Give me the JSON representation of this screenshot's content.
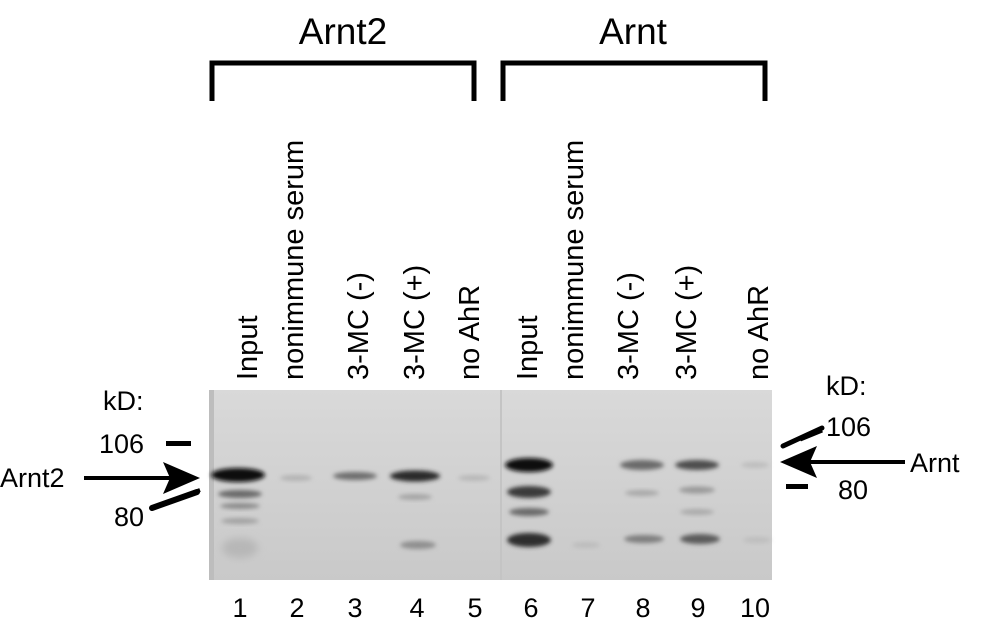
{
  "groups": [
    {
      "title": "Arnt2"
    },
    {
      "title": "Arnt"
    }
  ],
  "lanes": [
    {
      "number": "1",
      "label": "Input"
    },
    {
      "number": "2",
      "label": "nonimmune serum"
    },
    {
      "number": "3",
      "label": "3-MC (-)"
    },
    {
      "number": "4",
      "label": "3-MC (+)"
    },
    {
      "number": "5",
      "label": "no AhR"
    },
    {
      "number": "6",
      "label": "Input"
    },
    {
      "number": "7",
      "label": "nonimmune serum"
    },
    {
      "number": "8",
      "label": "3-MC (-)"
    },
    {
      "number": "9",
      "label": "3-MC (+)"
    },
    {
      "number": "10",
      "label": "no AhR"
    }
  ],
  "markers": {
    "left": {
      "unit": "kD:",
      "upper": "106",
      "lower": "80",
      "band_label": "Arnt2"
    },
    "right": {
      "unit": "kD:",
      "upper": "106",
      "lower": "80",
      "band_label": "Arnt"
    }
  },
  "colors": {
    "gel_background": "#d3d3d3",
    "band": "#141414",
    "ink": "#000000"
  }
}
